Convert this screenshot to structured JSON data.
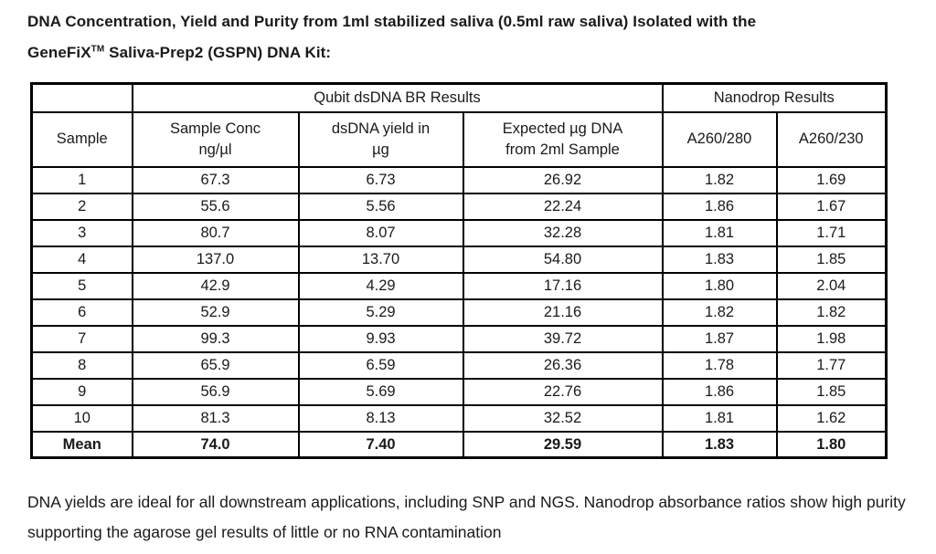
{
  "title": {
    "line1": "DNA Concentration, Yield and Purity from 1ml stabilized saliva (0.5ml raw saliva) Isolated with the",
    "line2_prefix": "GeneFiX",
    "line2_sup": "TM",
    "line2_suffix": " Saliva-Prep2 (GSPN) DNA Kit:"
  },
  "table": {
    "group_headers": {
      "qubit": "Qubit dsDNA BR Results",
      "nanodrop": "Nanodrop Results"
    },
    "columns": {
      "sample": "Sample",
      "conc_line1": "Sample Conc",
      "conc_line2": "ng/µl",
      "yield_line1": "dsDNA yield in",
      "yield_line2": "µg",
      "expected_line1": "Expected µg DNA",
      "expected_line2": "from 2ml Sample",
      "a260_280": "A260/280",
      "a260_230": "A260/230"
    },
    "rows": [
      [
        "1",
        "67.3",
        "6.73",
        "26.92",
        "1.82",
        "1.69"
      ],
      [
        "2",
        "55.6",
        "5.56",
        "22.24",
        "1.86",
        "1.67"
      ],
      [
        "3",
        "80.7",
        "8.07",
        "32.28",
        "1.81",
        "1.71"
      ],
      [
        "4",
        "137.0",
        "13.70",
        "54.80",
        "1.83",
        "1.85"
      ],
      [
        "5",
        "42.9",
        "4.29",
        "17.16",
        "1.80",
        "2.04"
      ],
      [
        "6",
        "52.9",
        "5.29",
        "21.16",
        "1.82",
        "1.82"
      ],
      [
        "7",
        "99.3",
        "9.93",
        "39.72",
        "1.87",
        "1.98"
      ],
      [
        "8",
        "65.9",
        "6.59",
        "26.36",
        "1.78",
        "1.77"
      ],
      [
        "9",
        "56.9",
        "5.69",
        "22.76",
        "1.86",
        "1.85"
      ],
      [
        "10",
        "81.3",
        "8.13",
        "32.52",
        "1.81",
        "1.62"
      ]
    ],
    "mean": [
      "Mean",
      "74.0",
      "7.40",
      "29.59",
      "1.83",
      "1.80"
    ]
  },
  "footer": {
    "text": "DNA yields are ideal for all downstream applications, including SNP and NGS. Nanodrop absorbance ratios show high purity supporting the agarose gel results of little or no RNA contamination"
  },
  "colors": {
    "qubit_bg": "#e2efda",
    "nanodrop_bg": "#dbe5f1",
    "border": "#000000",
    "text": "#1a1a1a"
  }
}
